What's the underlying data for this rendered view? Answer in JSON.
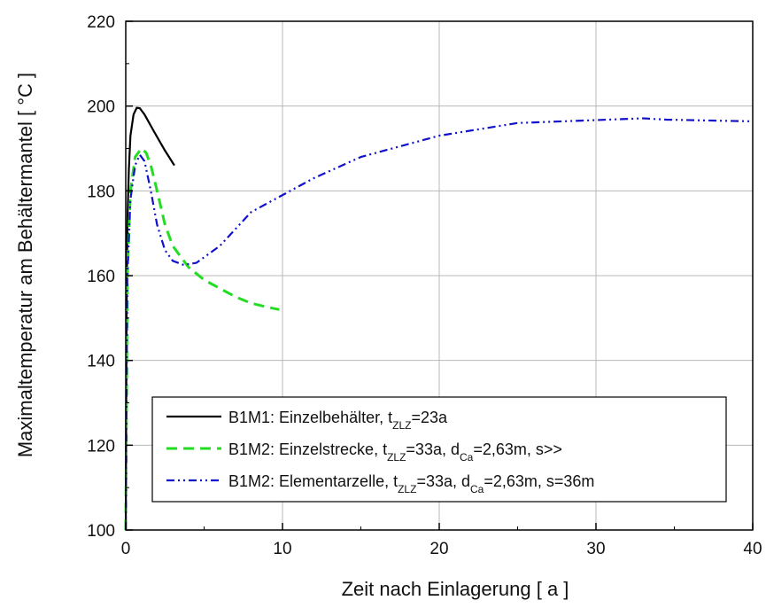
{
  "chart_data": {
    "type": "line",
    "title": "",
    "xlabel": "Zeit nach Einlagerung   [ a ]",
    "ylabel": "Maximaltemperatur am Behältermantel [ °C ]",
    "xlim": [
      0,
      40
    ],
    "ylim": [
      100,
      220
    ],
    "xticks": [
      "0",
      "10",
      "20",
      "30",
      "40"
    ],
    "yticks": [
      "100",
      "120",
      "140",
      "160",
      "180",
      "200",
      "220"
    ],
    "grid": true,
    "legend_position": "bottom-right",
    "series": [
      {
        "name": "B1M1: Einzelbehälter,  t_ZLZ=23a",
        "label_main": "B1M1: Einzelbehälter,  t",
        "label_parts": [
          {
            "sub": "ZLZ",
            "text": "=23a"
          }
        ],
        "color": "#000000",
        "style": "solid",
        "points": [
          [
            0,
            100
          ],
          [
            0.05,
            150
          ],
          [
            0.1,
            172
          ],
          [
            0.2,
            185
          ],
          [
            0.3,
            193
          ],
          [
            0.5,
            198
          ],
          [
            0.7,
            199.6
          ],
          [
            0.9,
            199.5
          ],
          [
            1.2,
            198
          ],
          [
            1.8,
            194
          ],
          [
            2.5,
            189.5
          ],
          [
            3.1,
            186
          ]
        ]
      },
      {
        "name": "B1M2: Einzelstrecke,   t_ZLZ=33a, d_Ca=2,63m, s>>",
        "label_main": "B1M2: Einzelstrecke,   t",
        "label_parts": [
          {
            "sub": "ZLZ",
            "text": "=33a, d"
          },
          {
            "sub": "Ca",
            "text": "=2,63m, s>>"
          }
        ],
        "color": "#22dd22",
        "style": "dashed",
        "points": [
          [
            0,
            100
          ],
          [
            0.1,
            160
          ],
          [
            0.3,
            180
          ],
          [
            0.6,
            188
          ],
          [
            1.0,
            190
          ],
          [
            1.3,
            189
          ],
          [
            1.6,
            186
          ],
          [
            2.0,
            180
          ],
          [
            2.5,
            172
          ],
          [
            3.0,
            167
          ],
          [
            4.0,
            162
          ],
          [
            5.0,
            159
          ],
          [
            6.0,
            157
          ],
          [
            7.0,
            155
          ],
          [
            8.0,
            153.5
          ],
          [
            9.0,
            152.6
          ],
          [
            9.8,
            152
          ]
        ]
      },
      {
        "name": "B1M2: Elementarzelle, t_ZLZ=33a, d_Ca=2,63m, s=36m",
        "label_main": "B1M2: Elementarzelle, t",
        "label_parts": [
          {
            "sub": "ZLZ",
            "text": "=33a, d"
          },
          {
            "sub": "Ca",
            "text": "=2,63m, s=36m"
          }
        ],
        "color": "#1111cc",
        "style": "dashdotdot",
        "points": [
          [
            0,
            100
          ],
          [
            0.1,
            160
          ],
          [
            0.3,
            178
          ],
          [
            0.6,
            186
          ],
          [
            0.9,
            188.5
          ],
          [
            1.2,
            187
          ],
          [
            1.6,
            180
          ],
          [
            2.0,
            172
          ],
          [
            2.5,
            166
          ],
          [
            3.0,
            163.5
          ],
          [
            3.7,
            162.5
          ],
          [
            4.5,
            163
          ],
          [
            6.0,
            167
          ],
          [
            8.0,
            175
          ],
          [
            10.0,
            179
          ],
          [
            12.0,
            183
          ],
          [
            15.0,
            188
          ],
          [
            20.0,
            193
          ],
          [
            25.0,
            196
          ],
          [
            30.0,
            196.7
          ],
          [
            33.0,
            197.1
          ],
          [
            34.5,
            196.8
          ],
          [
            37.0,
            196.6
          ],
          [
            40.0,
            196.4
          ]
        ]
      }
    ]
  }
}
